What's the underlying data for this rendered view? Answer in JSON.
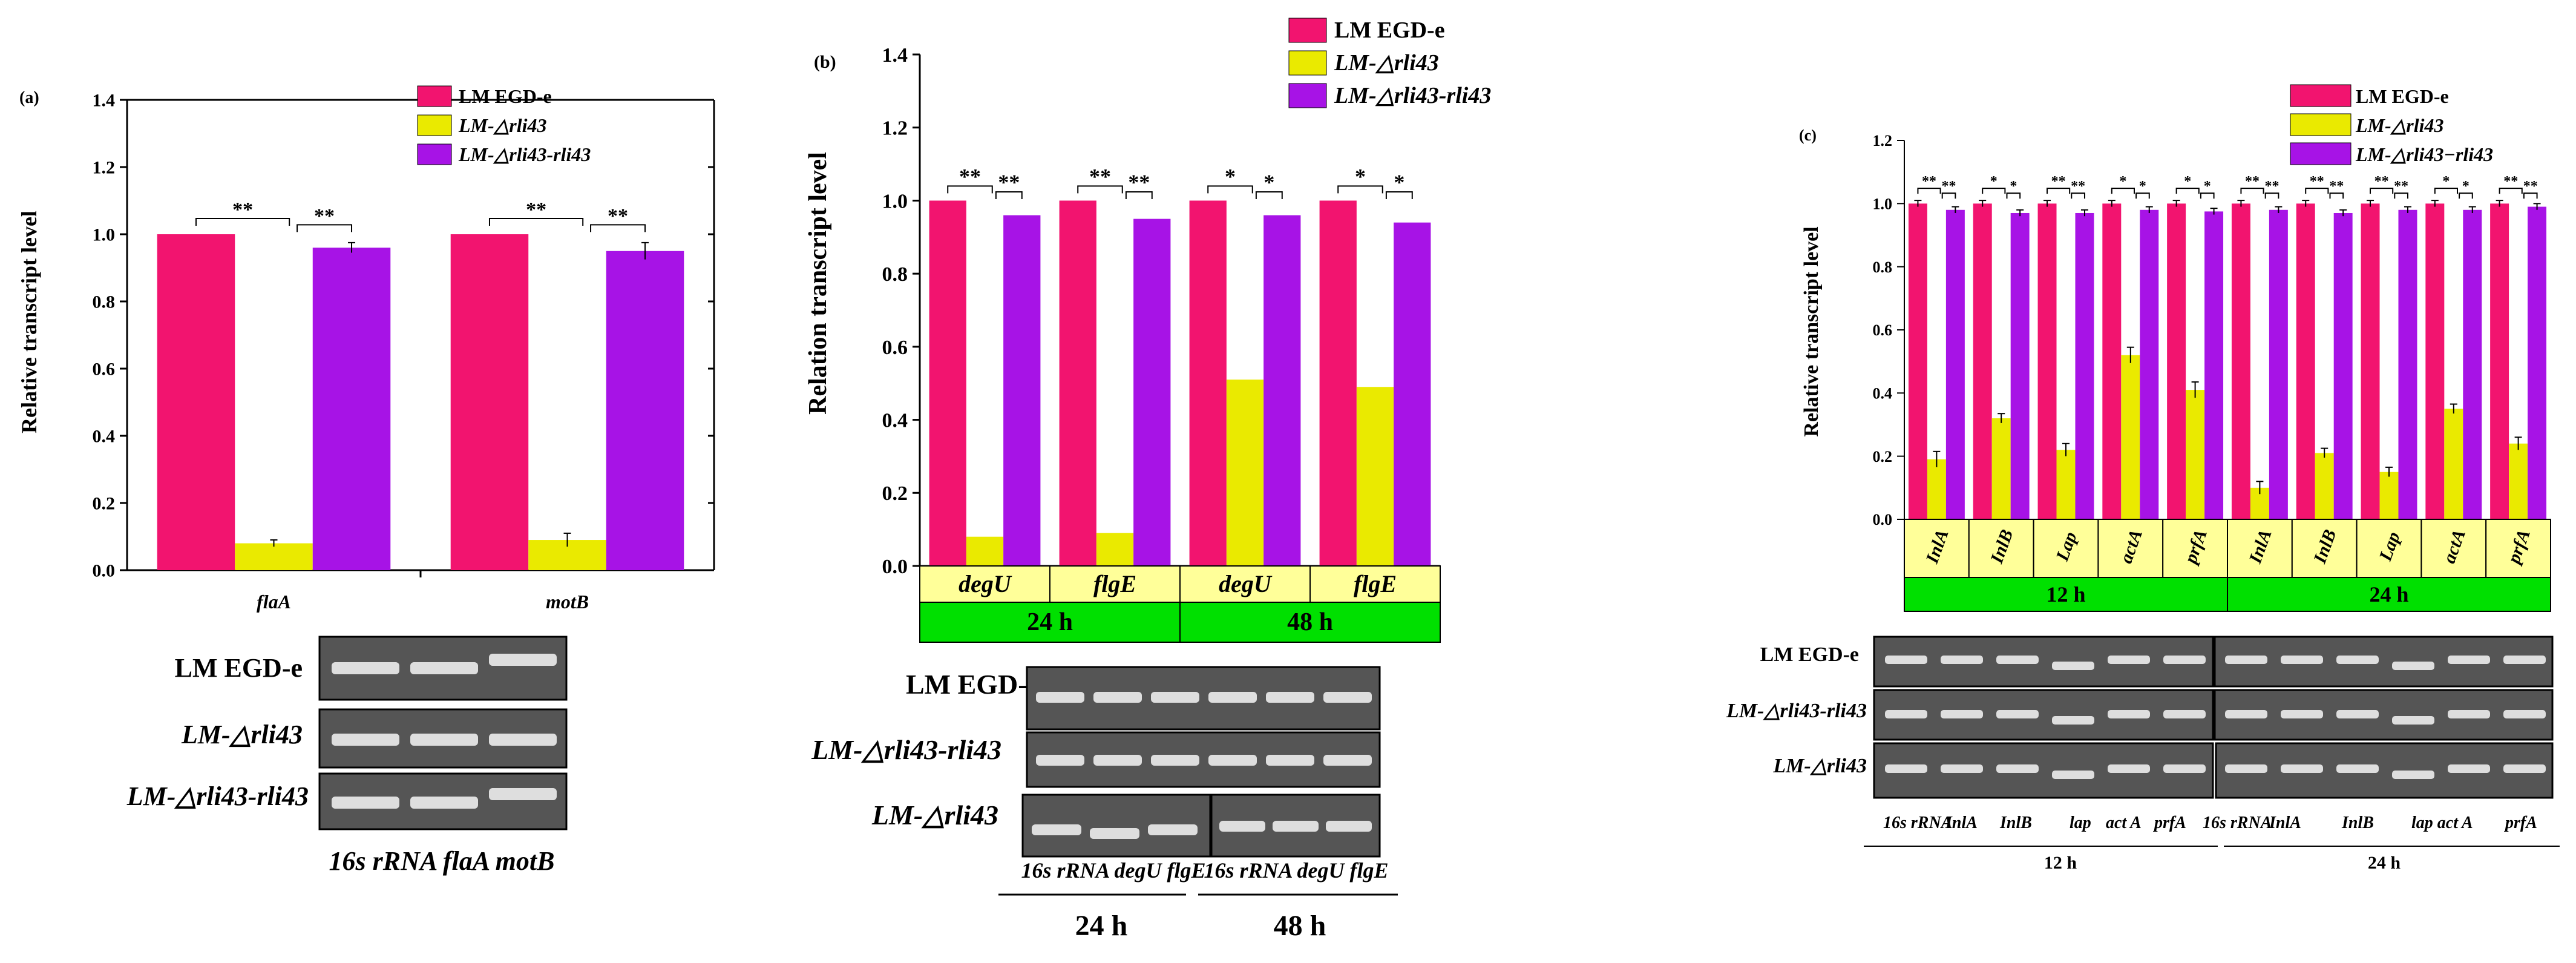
{
  "colors": {
    "wt": "#f2146f",
    "del": "#eaea00",
    "comp": "#a713e6",
    "green": "#00e000",
    "cellbg": "#ffff99",
    "gel": "#555555",
    "band": "#dedede"
  },
  "chart_data": [
    {
      "type": "bar",
      "panel": "(a)",
      "ylabel": "Relative transcript level",
      "ylim": [
        0,
        1.4
      ],
      "yticks": [
        "0.0",
        "0.2",
        "0.4",
        "0.6",
        "0.8",
        "1.0",
        "1.2",
        "1.4"
      ],
      "categories": [
        "flaA",
        "motB"
      ],
      "series": [
        {
          "name": "LM EGD-e",
          "values": [
            1.0,
            1.0
          ],
          "errors": [
            0,
            0
          ]
        },
        {
          "name": "LM-△rli43",
          "values": [
            0.08,
            0.09
          ],
          "errors": [
            0.01,
            0.02
          ]
        },
        {
          "name": "LM-△rli43-rli43",
          "values": [
            0.96,
            0.95
          ],
          "errors": [
            0.015,
            0.025
          ]
        }
      ],
      "significance": [
        [
          "**",
          "**"
        ],
        [
          "**",
          "**"
        ]
      ],
      "gel": {
        "rows": [
          "LM EGD-e",
          "LM-△rli43",
          "LM-△rli43-rli43"
        ],
        "lane_labels": "16s rRNA flaA motB"
      }
    },
    {
      "type": "bar",
      "panel": "(b)",
      "ylabel": "Relation transcript level",
      "ylim": [
        0,
        1.4
      ],
      "yticks": [
        "0.0",
        "0.2",
        "0.4",
        "0.6",
        "0.8",
        "1.0",
        "1.2",
        "1.4"
      ],
      "categories": [
        "degU",
        "flgE",
        "degU",
        "flgE"
      ],
      "groups": [
        "24 h",
        "48 h"
      ],
      "series": [
        {
          "name": "LM EGD-e",
          "values": [
            1.0,
            1.0,
            1.0,
            1.0
          ]
        },
        {
          "name": "LM-△rli43",
          "values": [
            0.08,
            0.09,
            0.51,
            0.49
          ]
        },
        {
          "name": "LM-△rli43-rli43",
          "values": [
            0.96,
            0.95,
            0.96,
            0.94
          ]
        }
      ],
      "significance": [
        [
          "**",
          "**"
        ],
        [
          "**",
          "**"
        ],
        [
          "*",
          "*"
        ],
        [
          "*",
          "*"
        ]
      ],
      "gel": {
        "rows": [
          "LM EGD-e",
          "LM-△rli43-rli43",
          "LM-△rli43"
        ],
        "lane_labels": [
          "16s rRNA degU flgE",
          "16s rRNA degU flgE"
        ],
        "groups": [
          "24 h",
          "48 h"
        ]
      }
    },
    {
      "type": "bar",
      "panel": "(c)",
      "ylabel": "Relative transcript level",
      "ylim": [
        0,
        1.2
      ],
      "yticks": [
        "0.0",
        "0.2",
        "0.4",
        "0.6",
        "0.8",
        "1.0",
        "1.2"
      ],
      "categories": [
        "InlA",
        "InlB",
        "Lap",
        "actA",
        "prfA",
        "InlA",
        "InlB",
        "Lap",
        "actA",
        "prfA"
      ],
      "groups": [
        "12 h",
        "24 h"
      ],
      "series": [
        {
          "name": "LM EGD-e",
          "values": [
            1.0,
            1.0,
            1.0,
            1.0,
            1.0,
            1.0,
            1.0,
            1.0,
            1.0,
            1.0
          ],
          "errors": [
            0.01,
            0.01,
            0.01,
            0.01,
            0.01,
            0.01,
            0.01,
            0.01,
            0.01,
            0.01
          ]
        },
        {
          "name": "LM-△rli43",
          "values": [
            0.19,
            0.32,
            0.22,
            0.52,
            0.41,
            0.1,
            0.21,
            0.15,
            0.35,
            0.24
          ],
          "errors": [
            0.025,
            0.015,
            0.02,
            0.025,
            0.025,
            0.02,
            0.015,
            0.015,
            0.015,
            0.02
          ]
        },
        {
          "name": "LM-△rli43−rli43",
          "values": [
            0.98,
            0.97,
            0.97,
            0.98,
            0.975,
            0.98,
            0.97,
            0.98,
            0.98,
            0.99
          ],
          "errors": [
            0.01,
            0.01,
            0.01,
            0.01,
            0.01,
            0.01,
            0.01,
            0.01,
            0.01,
            0.01
          ]
        }
      ],
      "significance": [
        [
          "**",
          "**"
        ],
        [
          "*",
          "*"
        ],
        [
          "**",
          "**"
        ],
        [
          "*",
          "*"
        ],
        [
          "*",
          "*"
        ],
        [
          "**",
          "**"
        ],
        [
          "**",
          "**"
        ],
        [
          "**",
          "**"
        ],
        [
          "*",
          "*"
        ],
        [
          "**",
          "**"
        ]
      ],
      "gel": {
        "rows": [
          "LM EGD-e",
          "LM-△rli43-rli43",
          "LM-△rli43"
        ],
        "lane_labels_12h": [
          "16s rRNA",
          "InlA",
          "InlB",
          "lap",
          "act A",
          "prfA"
        ],
        "lane_labels_24h": [
          "16s rRNA",
          "InlA",
          "InlB",
          "lap act A",
          "prfA"
        ],
        "groups": [
          "12 h",
          "24 h"
        ]
      }
    }
  ]
}
